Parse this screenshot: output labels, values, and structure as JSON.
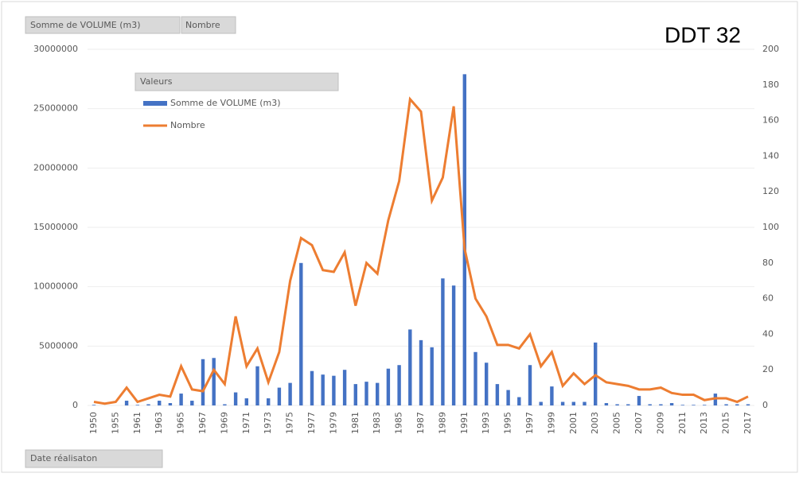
{
  "chart_data": {
    "type": "bar-line",
    "annotation": "DDT 32",
    "legend_title": "Valeurs",
    "axis_button": "Date réalisaton",
    "categories": [
      "1950",
      null,
      "1955",
      null,
      "1961",
      null,
      "1963",
      null,
      "1965",
      null,
      "1967",
      null,
      "1969",
      null,
      "1971",
      null,
      "1973",
      null,
      "1975",
      null,
      "1977",
      null,
      "1979",
      null,
      "1981",
      null,
      "1983",
      null,
      "1985",
      null,
      "1987",
      null,
      "1989",
      null,
      "1991",
      null,
      "1993",
      null,
      "1995",
      null,
      "1997",
      null,
      "1999",
      null,
      "2001",
      null,
      "2003",
      null,
      "2005",
      null,
      "2007",
      null,
      "2009",
      null,
      "2011",
      null,
      "2013",
      null,
      "2015",
      null,
      "2017"
    ],
    "series": [
      {
        "name": "Somme de VOLUME (m3)",
        "color": "#4472c4",
        "kind": "bar",
        "values": [
          50000,
          0,
          0,
          400000,
          50000,
          100000,
          400000,
          200000,
          1000000,
          400000,
          3900000,
          4000000,
          100000,
          1100000,
          600000,
          3300000,
          600000,
          1500000,
          1900000,
          12000000,
          2900000,
          2600000,
          2500000,
          3000000,
          1800000,
          2000000,
          1900000,
          3100000,
          3400000,
          6400000,
          5500000,
          4900000,
          10700000,
          10100000,
          27900000,
          4500000,
          3600000,
          1800000,
          1300000,
          700000,
          3400000,
          300000,
          1600000,
          300000,
          300000,
          300000,
          5300000,
          200000,
          100000,
          100000,
          800000,
          100000,
          100000,
          200000,
          50000,
          50000,
          50000,
          1000000,
          100000,
          100000,
          100000
        ]
      },
      {
        "name": "Nombre",
        "color": "#ed7d31",
        "kind": "line",
        "axis": "y2",
        "values": [
          2,
          1,
          2,
          10,
          2,
          4,
          6,
          5,
          22,
          9,
          8,
          20,
          12,
          50,
          22,
          32,
          13,
          30,
          70,
          94,
          90,
          76,
          75,
          86,
          56,
          80,
          74,
          104,
          126,
          172,
          165,
          115,
          128,
          168,
          88,
          60,
          50,
          34,
          34,
          32,
          40,
          22,
          30,
          11,
          18,
          12,
          17,
          13,
          12,
          11,
          9,
          9,
          10,
          7,
          6,
          6,
          3,
          4,
          4,
          2,
          5
        ]
      }
    ],
    "ylim": [
      0,
      30000000
    ],
    "yticks": [
      0,
      5000000,
      10000000,
      15000000,
      20000000,
      25000000,
      30000000
    ],
    "y2lim": [
      0,
      200
    ],
    "y2ticks": [
      0,
      20,
      40,
      60,
      80,
      100,
      120,
      140,
      160,
      180,
      200
    ],
    "grid": true
  }
}
